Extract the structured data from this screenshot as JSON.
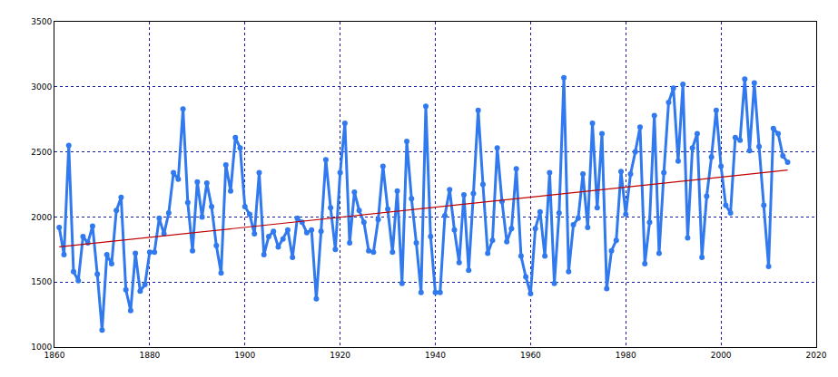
{
  "chart_data": {
    "type": "line",
    "x": [
      1861,
      1862,
      1863,
      1864,
      1865,
      1866,
      1867,
      1868,
      1869,
      1870,
      1871,
      1872,
      1873,
      1874,
      1875,
      1876,
      1877,
      1878,
      1879,
      1880,
      1881,
      1882,
      1883,
      1884,
      1885,
      1886,
      1887,
      1888,
      1889,
      1890,
      1891,
      1892,
      1893,
      1894,
      1895,
      1896,
      1897,
      1898,
      1899,
      1900,
      1901,
      1902,
      1903,
      1904,
      1905,
      1906,
      1907,
      1908,
      1909,
      1910,
      1911,
      1912,
      1913,
      1914,
      1915,
      1916,
      1917,
      1918,
      1919,
      1920,
      1921,
      1922,
      1923,
      1924,
      1925,
      1926,
      1927,
      1928,
      1929,
      1930,
      1931,
      1932,
      1933,
      1934,
      1935,
      1936,
      1937,
      1938,
      1939,
      1940,
      1941,
      1942,
      1943,
      1944,
      1945,
      1946,
      1947,
      1948,
      1949,
      1950,
      1951,
      1952,
      1953,
      1954,
      1955,
      1956,
      1957,
      1958,
      1959,
      1960,
      1961,
      1962,
      1963,
      1964,
      1965,
      1966,
      1967,
      1968,
      1969,
      1970,
      1971,
      1972,
      1973,
      1974,
      1975,
      1976,
      1977,
      1978,
      1979,
      1980,
      1981,
      1982,
      1983,
      1984,
      1985,
      1986,
      1987,
      1988,
      1989,
      1990,
      1991,
      1992,
      1993,
      1994,
      1995,
      1996,
      1997,
      1998,
      1999,
      2000,
      2001,
      2002,
      2003,
      2004,
      2005,
      2006,
      2007,
      2008,
      2009,
      2010,
      2011,
      2012,
      2013,
      2014
    ],
    "series": [
      {
        "color": "#3079ee",
        "marker": "circle",
        "line_style": "solid",
        "values": [
          1920,
          1710,
          2550,
          1580,
          1510,
          1850,
          1800,
          1930,
          1560,
          1130,
          1710,
          1640,
          2050,
          2150,
          1440,
          1280,
          1720,
          1430,
          1480,
          1730,
          1730,
          1990,
          1870,
          2030,
          2340,
          2290,
          2830,
          2110,
          1740,
          2270,
          2000,
          2260,
          2080,
          1780,
          1570,
          2400,
          2200,
          2610,
          2530,
          2080,
          2020,
          1870,
          2340,
          1710,
          1850,
          1890,
          1770,
          1830,
          1900,
          1690,
          1990,
          1960,
          1880,
          1900,
          1370,
          1890,
          2440,
          2070,
          1750,
          2340,
          2720,
          1800,
          2190,
          2050,
          1960,
          1740,
          1730,
          1980,
          2390,
          2060,
          1730,
          2200,
          1490,
          2580,
          2140,
          1800,
          1420,
          2850,
          1850,
          1420,
          1420,
          2010,
          2210,
          1900,
          1650,
          2170,
          1590,
          2180,
          2820,
          2250,
          1720,
          1820,
          2530,
          2120,
          1810,
          1910,
          2370,
          1700,
          1540,
          1410,
          1910,
          2040,
          1700,
          2340,
          1490,
          2030,
          3070,
          1580,
          1940,
          1990,
          2330,
          1920,
          2720,
          2070,
          2640,
          1450,
          1740,
          1820,
          2350,
          2020,
          2330,
          2500,
          2690,
          1640,
          1960,
          2780,
          1720,
          2340,
          2880,
          2990,
          2430,
          3020,
          1840,
          2530,
          2640,
          1690,
          2160,
          2460,
          2820,
          2390,
          2090,
          2030,
          2610,
          2590,
          3060,
          2510,
          3030,
          2540,
          2090,
          1620,
          2680,
          2640,
          2470,
          2420
        ]
      },
      {
        "color": "#c00000",
        "line_style": "solid",
        "x": [
          1861,
          2014
        ],
        "values": [
          1770,
          2360
        ]
      }
    ],
    "xlim": [
      1860,
      2020
    ],
    "xticks": [
      1860,
      1880,
      1900,
      1920,
      1940,
      1960,
      1980,
      2000,
      2020
    ],
    "ylim": [
      1000,
      3500
    ],
    "yticks": [
      1000,
      1500,
      2000,
      2500,
      3000,
      3500
    ],
    "grid": true
  }
}
